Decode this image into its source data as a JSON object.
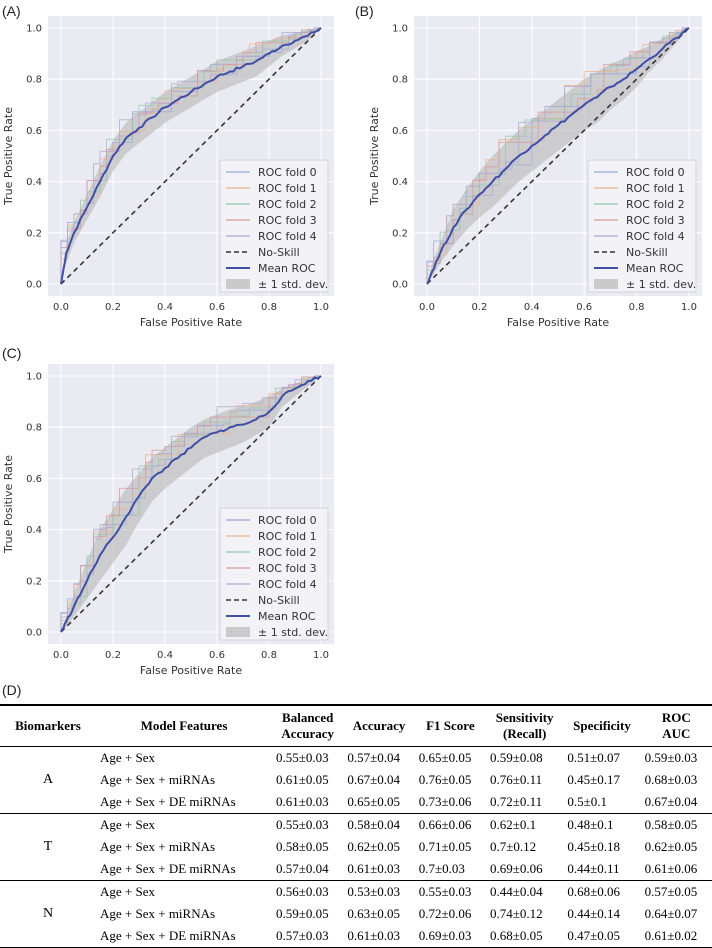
{
  "panels": {
    "A": {
      "label": "(A)"
    },
    "B": {
      "label": "(B)"
    },
    "C": {
      "label": "(C)"
    },
    "D": {
      "label": "(D)"
    }
  },
  "chart_data": [
    {
      "type": "line",
      "id": "A",
      "xlabel": "False Positive Rate",
      "ylabel": "True Positive Rate",
      "xlim": [
        0,
        1
      ],
      "ylim": [
        0,
        1
      ],
      "xticks": [
        "0.0",
        "0.2",
        "0.4",
        "0.6",
        "0.8",
        "1.0"
      ],
      "yticks": [
        "0.0",
        "0.2",
        "0.4",
        "0.6",
        "0.8",
        "1.0"
      ],
      "grid": true,
      "legend_position": "bottom-right",
      "legend": [
        "ROC fold 0",
        "ROC fold 1",
        "ROC fold 2",
        "ROC fold 3",
        "ROC fold 4",
        "No-Skill",
        "Mean ROC",
        "± 1 std. dev."
      ],
      "series": [
        {
          "name": "Mean ROC",
          "x": [
            0,
            0.02,
            0.05,
            0.1,
            0.15,
            0.2,
            0.25,
            0.3,
            0.35,
            0.4,
            0.45,
            0.5,
            0.55,
            0.6,
            0.65,
            0.7,
            0.75,
            0.8,
            0.85,
            0.9,
            0.95,
            1.0
          ],
          "y": [
            0,
            0.12,
            0.2,
            0.3,
            0.4,
            0.5,
            0.57,
            0.61,
            0.65,
            0.69,
            0.72,
            0.75,
            0.78,
            0.81,
            0.83,
            0.85,
            0.87,
            0.9,
            0.93,
            0.95,
            0.97,
            1.0
          ]
        },
        {
          "name": "Std upper",
          "x": [
            0,
            0.02,
            0.05,
            0.1,
            0.15,
            0.2,
            0.25,
            0.3,
            0.35,
            0.4,
            0.45,
            0.5,
            0.55,
            0.6,
            0.65,
            0.7,
            0.75,
            0.8,
            0.85,
            0.9,
            0.95,
            1.0
          ],
          "y": [
            0,
            0.16,
            0.24,
            0.35,
            0.46,
            0.56,
            0.63,
            0.67,
            0.71,
            0.75,
            0.78,
            0.81,
            0.84,
            0.87,
            0.89,
            0.91,
            0.93,
            0.95,
            0.97,
            0.98,
            0.99,
            1.0
          ]
        },
        {
          "name": "Std lower",
          "x": [
            0,
            0.02,
            0.05,
            0.1,
            0.15,
            0.2,
            0.25,
            0.3,
            0.35,
            0.4,
            0.45,
            0.5,
            0.55,
            0.6,
            0.65,
            0.7,
            0.75,
            0.8,
            0.85,
            0.9,
            0.95,
            1.0
          ],
          "y": [
            0,
            0.08,
            0.16,
            0.25,
            0.34,
            0.44,
            0.51,
            0.55,
            0.59,
            0.63,
            0.66,
            0.69,
            0.72,
            0.75,
            0.77,
            0.79,
            0.81,
            0.85,
            0.89,
            0.92,
            0.95,
            1.0
          ]
        },
        {
          "name": "No-Skill",
          "x": [
            0,
            1
          ],
          "y": [
            0,
            1
          ]
        }
      ]
    },
    {
      "type": "line",
      "id": "B",
      "xlabel": "False Positive Rate",
      "ylabel": "True Positive Rate",
      "xlim": [
        0,
        1
      ],
      "ylim": [
        0,
        1
      ],
      "xticks": [
        "0.0",
        "0.2",
        "0.4",
        "0.6",
        "0.8",
        "1.0"
      ],
      "yticks": [
        "0.0",
        "0.2",
        "0.4",
        "0.6",
        "0.8",
        "1.0"
      ],
      "grid": true,
      "legend_position": "bottom-right",
      "legend": [
        "ROC fold 0",
        "ROC fold 1",
        "ROC fold 2",
        "ROC fold 3",
        "ROC fold 4",
        "No-Skill",
        "Mean ROC",
        "± 1 std. dev."
      ],
      "series": [
        {
          "name": "Mean ROC",
          "x": [
            0,
            0.02,
            0.05,
            0.1,
            0.15,
            0.2,
            0.25,
            0.3,
            0.35,
            0.4,
            0.45,
            0.5,
            0.55,
            0.6,
            0.65,
            0.7,
            0.75,
            0.8,
            0.85,
            0.9,
            0.95,
            1.0
          ],
          "y": [
            0,
            0.05,
            0.12,
            0.22,
            0.29,
            0.35,
            0.4,
            0.45,
            0.5,
            0.54,
            0.58,
            0.62,
            0.66,
            0.7,
            0.73,
            0.77,
            0.8,
            0.84,
            0.88,
            0.92,
            0.96,
            1.0
          ]
        },
        {
          "name": "Std upper",
          "x": [
            0,
            0.02,
            0.05,
            0.1,
            0.15,
            0.2,
            0.25,
            0.3,
            0.35,
            0.4,
            0.45,
            0.5,
            0.55,
            0.6,
            0.65,
            0.7,
            0.75,
            0.8,
            0.85,
            0.9,
            0.95,
            1.0
          ],
          "y": [
            0,
            0.08,
            0.16,
            0.29,
            0.37,
            0.44,
            0.5,
            0.55,
            0.6,
            0.64,
            0.68,
            0.72,
            0.76,
            0.8,
            0.83,
            0.86,
            0.88,
            0.91,
            0.93,
            0.96,
            0.98,
            1.0
          ]
        },
        {
          "name": "Std lower",
          "x": [
            0,
            0.02,
            0.05,
            0.1,
            0.15,
            0.2,
            0.25,
            0.3,
            0.35,
            0.4,
            0.45,
            0.5,
            0.55,
            0.6,
            0.65,
            0.7,
            0.75,
            0.8,
            0.85,
            0.9,
            0.95,
            1.0
          ],
          "y": [
            0,
            0.03,
            0.08,
            0.15,
            0.21,
            0.26,
            0.3,
            0.35,
            0.4,
            0.44,
            0.48,
            0.52,
            0.56,
            0.6,
            0.63,
            0.68,
            0.72,
            0.77,
            0.83,
            0.88,
            0.94,
            1.0
          ]
        },
        {
          "name": "No-Skill",
          "x": [
            0,
            1
          ],
          "y": [
            0,
            1
          ]
        }
      ]
    },
    {
      "type": "line",
      "id": "C",
      "xlabel": "False Positive Rate",
      "ylabel": "True Positive Rate",
      "xlim": [
        0,
        1
      ],
      "ylim": [
        0,
        1
      ],
      "xticks": [
        "0.0",
        "0.2",
        "0.4",
        "0.6",
        "0.8",
        "1.0"
      ],
      "yticks": [
        "0.0",
        "0.2",
        "0.4",
        "0.6",
        "0.8",
        "1.0"
      ],
      "grid": true,
      "legend_position": "bottom-right",
      "legend": [
        "ROC fold 0",
        "ROC fold 1",
        "ROC fold 2",
        "ROC fold 3",
        "ROC fold 4",
        "No-Skill",
        "Mean ROC",
        "± 1 std. dev."
      ],
      "series": [
        {
          "name": "Mean ROC",
          "x": [
            0,
            0.02,
            0.05,
            0.1,
            0.15,
            0.2,
            0.25,
            0.3,
            0.35,
            0.4,
            0.45,
            0.5,
            0.55,
            0.6,
            0.65,
            0.7,
            0.75,
            0.8,
            0.85,
            0.9,
            0.95,
            1.0
          ],
          "y": [
            0,
            0.04,
            0.1,
            0.2,
            0.3,
            0.37,
            0.45,
            0.53,
            0.6,
            0.64,
            0.68,
            0.72,
            0.76,
            0.78,
            0.8,
            0.81,
            0.83,
            0.86,
            0.92,
            0.95,
            0.98,
            1.0
          ]
        },
        {
          "name": "Std upper",
          "x": [
            0,
            0.02,
            0.05,
            0.1,
            0.15,
            0.2,
            0.25,
            0.3,
            0.35,
            0.4,
            0.45,
            0.5,
            0.55,
            0.6,
            0.65,
            0.7,
            0.75,
            0.8,
            0.85,
            0.9,
            0.95,
            1.0
          ],
          "y": [
            0,
            0.06,
            0.15,
            0.28,
            0.4,
            0.48,
            0.56,
            0.62,
            0.68,
            0.72,
            0.76,
            0.8,
            0.83,
            0.85,
            0.87,
            0.88,
            0.9,
            0.92,
            0.95,
            0.97,
            0.99,
            1.0
          ]
        },
        {
          "name": "Std lower",
          "x": [
            0,
            0.02,
            0.05,
            0.1,
            0.15,
            0.2,
            0.25,
            0.3,
            0.35,
            0.4,
            0.45,
            0.5,
            0.55,
            0.6,
            0.65,
            0.7,
            0.75,
            0.8,
            0.85,
            0.9,
            0.95,
            1.0
          ],
          "y": [
            0,
            0.02,
            0.06,
            0.13,
            0.2,
            0.27,
            0.34,
            0.43,
            0.51,
            0.56,
            0.6,
            0.64,
            0.68,
            0.7,
            0.72,
            0.74,
            0.77,
            0.8,
            0.88,
            0.92,
            0.96,
            1.0
          ]
        },
        {
          "name": "No-Skill",
          "x": [
            0,
            1
          ],
          "y": [
            0,
            1
          ]
        }
      ]
    },
    {
      "type": "table",
      "id": "D",
      "columns": [
        "Biomarkers",
        "Model Features",
        "Balanced Accuracy",
        "Accuracy",
        "F1 Score",
        "Sensitivity (Recall)",
        "Specificity",
        "ROC AUC"
      ],
      "header_lines": [
        [
          "Biomarkers"
        ],
        [
          "Model Features"
        ],
        [
          "Balanced",
          "Accuracy"
        ],
        [
          "Accuracy"
        ],
        [
          "F1 Score"
        ],
        [
          "Sensitivity",
          "(Recall)"
        ],
        [
          "Specificity"
        ],
        [
          "ROC",
          "AUC"
        ]
      ],
      "groups": [
        {
          "biomarker": "A",
          "rows": [
            [
              "Age + Sex",
              "0.55±0.03",
              "0.57±0.04",
              "0.65±0.05",
              "0.59±0.08",
              "0.51±0.07",
              "0.59±0.03"
            ],
            [
              "Age + Sex + miRNAs",
              "0.61±0.05",
              "0.67±0.04",
              "0.76±0.05",
              "0.76±0.11",
              "0.45±0.17",
              "0.68±0.03"
            ],
            [
              "Age + Sex + DE miRNAs",
              "0.61±0.03",
              "0.65±0.05",
              "0.73±0.06",
              "0.72±0.11",
              "0.5±0.1",
              "0.67±0.04"
            ]
          ]
        },
        {
          "biomarker": "T",
          "rows": [
            [
              "Age + Sex",
              "0.55±0.03",
              "0.58±0.04",
              "0.66±0.06",
              "0.62±0.1",
              "0.48±0.1",
              "0.58±0.05"
            ],
            [
              "Age + Sex + miRNAs",
              "0.58±0.05",
              "0.62±0.05",
              "0.71±0.05",
              "0.7±0.12",
              "0.45±0.18",
              "0.62±0.05"
            ],
            [
              "Age + Sex + DE miRNAs",
              "0.57±0.04",
              "0.61±0.03",
              "0.7±0.03",
              "0.69±0.06",
              "0.44±0.11",
              "0.61±0.06"
            ]
          ]
        },
        {
          "biomarker": "N",
          "rows": [
            [
              "Age + Sex",
              "0.56±0.03",
              "0.53±0.03",
              "0.55±0.03",
              "0.44±0.04",
              "0.68±0.06",
              "0.57±0.05"
            ],
            [
              "Age + Sex + miRNAs",
              "0.59±0.05",
              "0.63±0.05",
              "0.72±0.06",
              "0.74±0.12",
              "0.44±0.14",
              "0.64±0.07"
            ],
            [
              "Age + Sex + DE miRNAs",
              "0.57±0.03",
              "0.61±0.03",
              "0.69±0.03",
              "0.68±0.05",
              "0.47±0.05",
              "0.61±0.02"
            ]
          ]
        }
      ]
    }
  ],
  "colors": {
    "plot_bg": "#eaeaf2",
    "grid": "#ffffff",
    "mean": "#3f4ea8",
    "band": "#b8b8b8",
    "noskill": "#333333",
    "fold0": "#9aa8d8",
    "fold1": "#e8b48c",
    "fold2": "#90c8a8",
    "fold3": "#d89a9a",
    "fold4": "#b0a8d0"
  }
}
